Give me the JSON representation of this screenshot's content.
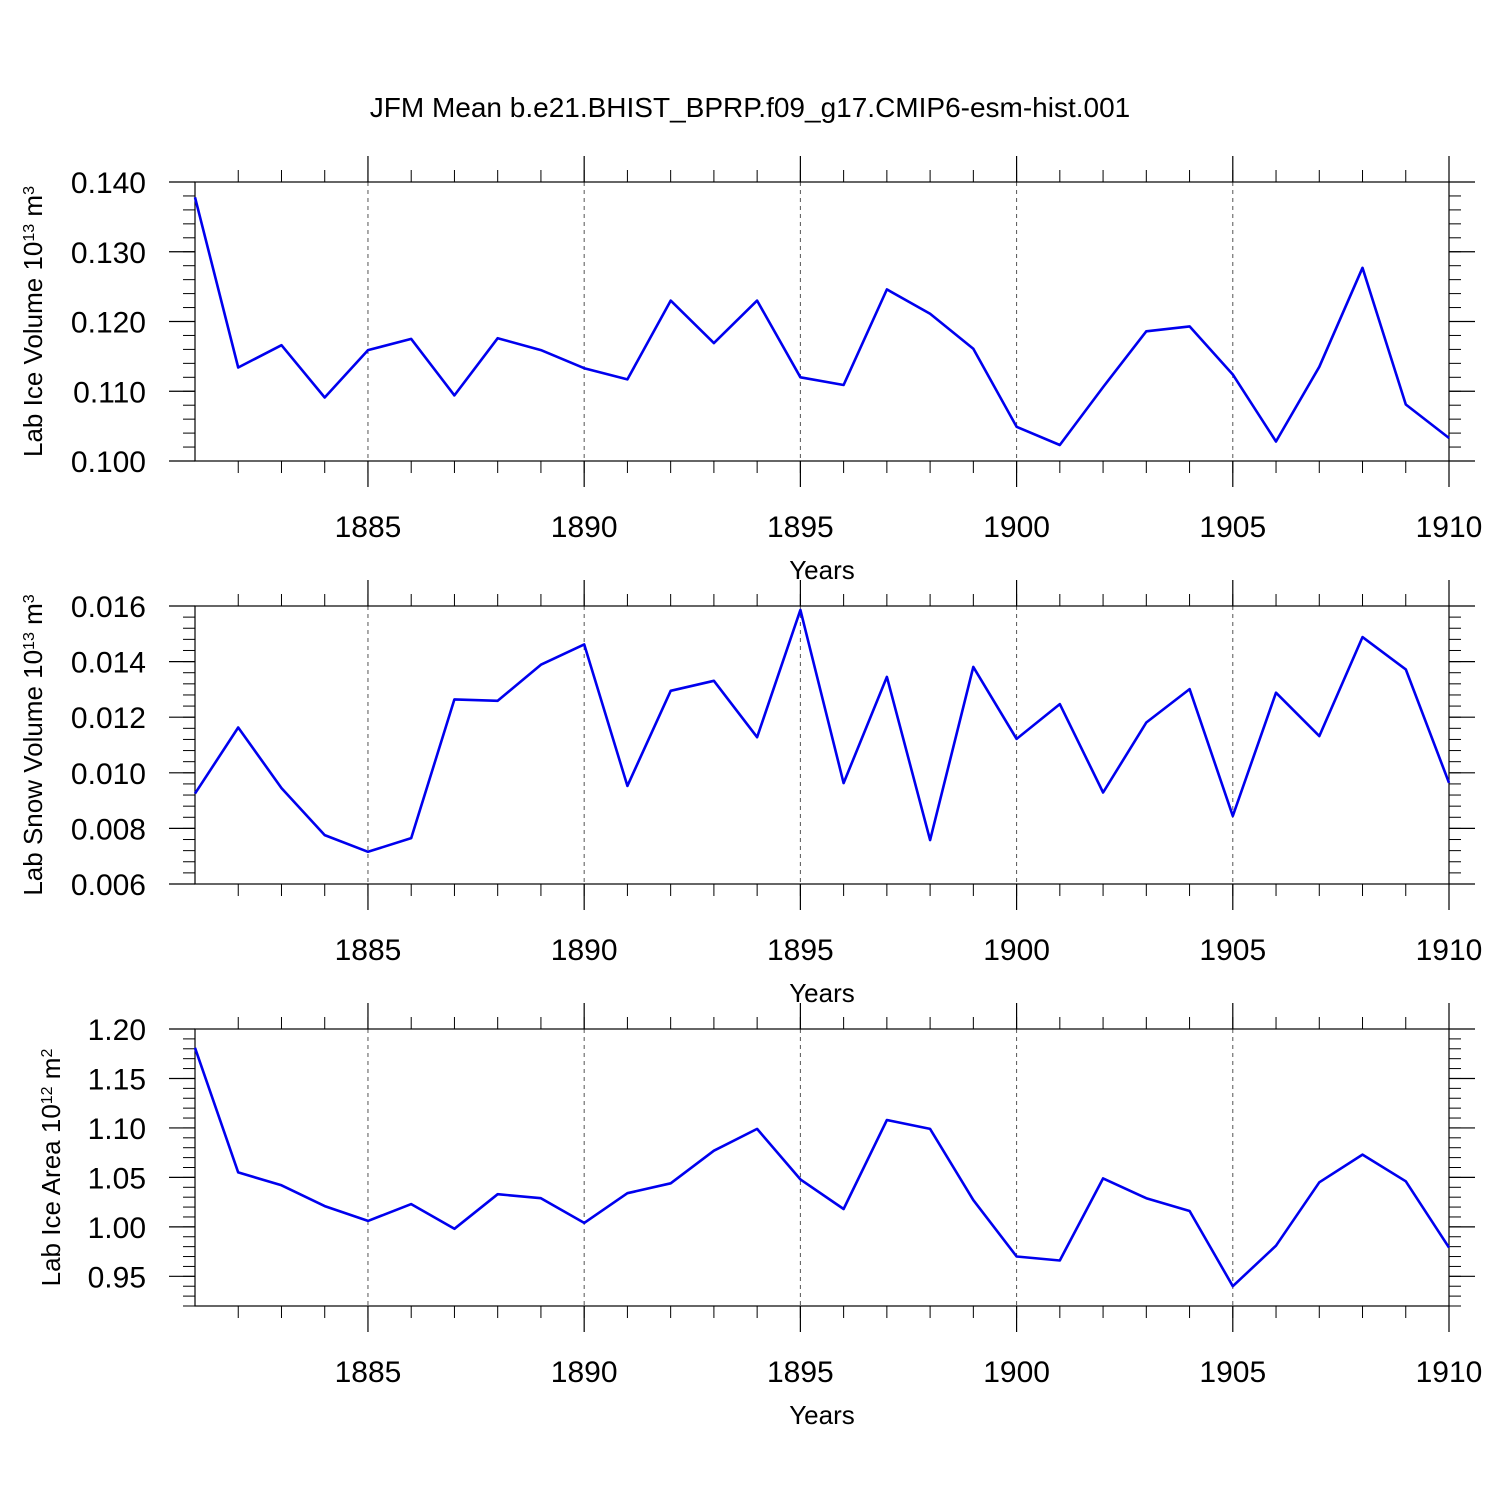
{
  "title": "JFM Mean b.e21.BHIST_BPRP.f09_g17.CMIP6-esm-hist.001",
  "colors": {
    "line": "#0000ee",
    "axis": "#000000",
    "grid": "#555555"
  },
  "chart_data": [
    {
      "type": "line",
      "ylabel_main": "Lab Ice Volume 10",
      "ylabel_exp": "13",
      "ylabel_unit": " m",
      "ylabel_unit_exp": "3",
      "xlabel": "Years",
      "xlim": [
        1881,
        1910
      ],
      "ylim": [
        0.1,
        0.14
      ],
      "yticks": [
        0.1,
        0.11,
        0.12,
        0.13,
        0.14
      ],
      "ytick_labels": [
        "0.100",
        "0.110",
        "0.120",
        "0.130",
        "0.140"
      ],
      "xticks": [
        1885,
        1890,
        1895,
        1900,
        1905,
        1910
      ],
      "xtick_labels": [
        "1885",
        "1890",
        "1895",
        "1900",
        "1905",
        "1910"
      ],
      "x": [
        1881,
        1882,
        1883,
        1884,
        1885,
        1886,
        1887,
        1888,
        1889,
        1890,
        1891,
        1892,
        1893,
        1894,
        1895,
        1896,
        1897,
        1898,
        1899,
        1900,
        1901,
        1902,
        1903,
        1904,
        1905,
        1906,
        1907,
        1908,
        1909,
        1910
      ],
      "values": [
        0.1378,
        0.1134,
        0.1166,
        0.1091,
        0.1159,
        0.1175,
        0.1094,
        0.1176,
        0.1159,
        0.1133,
        0.1117,
        0.123,
        0.1169,
        0.123,
        0.112,
        0.1109,
        0.1246,
        0.1211,
        0.1161,
        0.1049,
        0.1023,
        0.1106,
        0.1186,
        0.1193,
        0.1124,
        0.1028,
        0.1135,
        0.1277,
        0.1081,
        0.1033
      ]
    },
    {
      "type": "line",
      "ylabel_main": "Lab Snow Volume 10",
      "ylabel_exp": "13",
      "ylabel_unit": " m",
      "ylabel_unit_exp": "3",
      "xlabel": "Years",
      "xlim": [
        1881,
        1910
      ],
      "ylim": [
        0.006,
        0.016
      ],
      "yticks": [
        0.006,
        0.008,
        0.01,
        0.012,
        0.014,
        0.016
      ],
      "ytick_labels": [
        "0.006",
        "0.008",
        "0.010",
        "0.012",
        "0.014",
        "0.016"
      ],
      "xticks": [
        1885,
        1890,
        1895,
        1900,
        1905,
        1910
      ],
      "xtick_labels": [
        "1885",
        "1890",
        "1895",
        "1900",
        "1905",
        "1910"
      ],
      "x": [
        1881,
        1882,
        1883,
        1884,
        1885,
        1886,
        1887,
        1888,
        1889,
        1890,
        1891,
        1892,
        1893,
        1894,
        1895,
        1896,
        1897,
        1898,
        1899,
        1900,
        1901,
        1902,
        1903,
        1904,
        1905,
        1906,
        1907,
        1908,
        1909,
        1910
      ],
      "values": [
        0.00925,
        0.01163,
        0.00945,
        0.00776,
        0.00716,
        0.00765,
        0.01264,
        0.01259,
        0.01389,
        0.01462,
        0.00953,
        0.01295,
        0.01331,
        0.01128,
        0.01586,
        0.00963,
        0.01345,
        0.00758,
        0.01381,
        0.01122,
        0.01247,
        0.00929,
        0.01181,
        0.01301,
        0.00845,
        0.01288,
        0.01132,
        0.01488,
        0.01372,
        0.00964
      ]
    },
    {
      "type": "line",
      "ylabel_main": "Lab Ice Area 10",
      "ylabel_exp": "12",
      "ylabel_unit": " m",
      "ylabel_unit_exp": "2",
      "xlabel": "Years",
      "xlim": [
        1881,
        1910
      ],
      "ylim": [
        0.92,
        1.2
      ],
      "yticks": [
        0.95,
        1.0,
        1.05,
        1.1,
        1.15,
        1.2
      ],
      "ytick_labels": [
        "0.95",
        "1.00",
        "1.05",
        "1.10",
        "1.15",
        "1.20"
      ],
      "xticks": [
        1885,
        1890,
        1895,
        1900,
        1905,
        1910
      ],
      "xtick_labels": [
        "1885",
        "1890",
        "1895",
        "1900",
        "1905",
        "1910"
      ],
      "x": [
        1881,
        1882,
        1883,
        1884,
        1885,
        1886,
        1887,
        1888,
        1889,
        1890,
        1891,
        1892,
        1893,
        1894,
        1895,
        1896,
        1897,
        1898,
        1899,
        1900,
        1901,
        1902,
        1903,
        1904,
        1905,
        1906,
        1907,
        1908,
        1909,
        1910
      ],
      "values": [
        1.181,
        1.055,
        1.042,
        1.021,
        1.006,
        1.023,
        0.998,
        1.033,
        1.029,
        1.004,
        1.034,
        1.044,
        1.077,
        1.099,
        1.048,
        1.018,
        1.108,
        1.099,
        1.027,
        0.97,
        0.966,
        1.049,
        1.029,
        1.016,
        0.94,
        0.981,
        1.045,
        1.073,
        1.046,
        0.979
      ]
    }
  ]
}
